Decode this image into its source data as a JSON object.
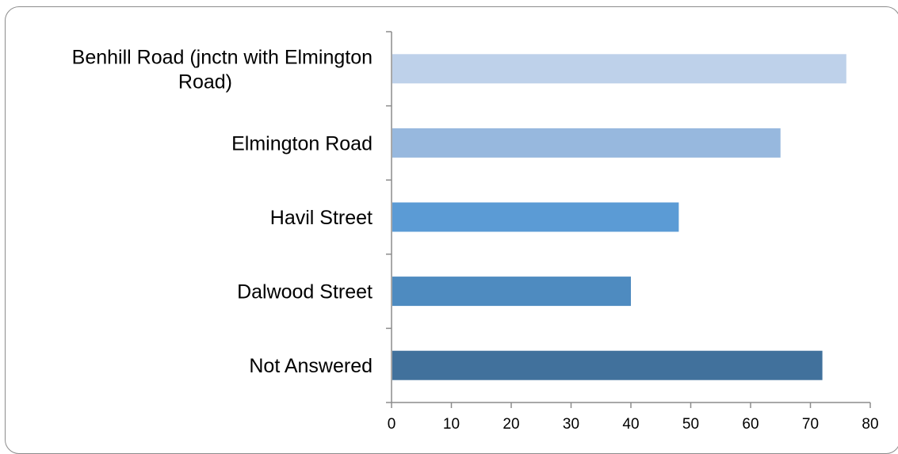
{
  "chart_data": {
    "type": "bar",
    "orientation": "horizontal",
    "categories": [
      [
        "Benhill Road (jnctn with Elmington",
        "Road)"
      ],
      [
        "Elmington Road"
      ],
      [
        "Havil Street"
      ],
      [
        "Dalwood Street"
      ],
      [
        "Not Answered"
      ]
    ],
    "values": [
      76,
      65,
      48,
      40,
      72
    ],
    "bar_colors": [
      "#bed1ea",
      "#97b8de",
      "#5b9bd5",
      "#4e8bc0",
      "#41719c"
    ],
    "xlim": [
      0,
      80
    ],
    "xticks": [
      0,
      10,
      20,
      30,
      40,
      50,
      60,
      70,
      80
    ],
    "grid": false,
    "legend": "none",
    "title": "",
    "xlabel": "",
    "ylabel": ""
  }
}
